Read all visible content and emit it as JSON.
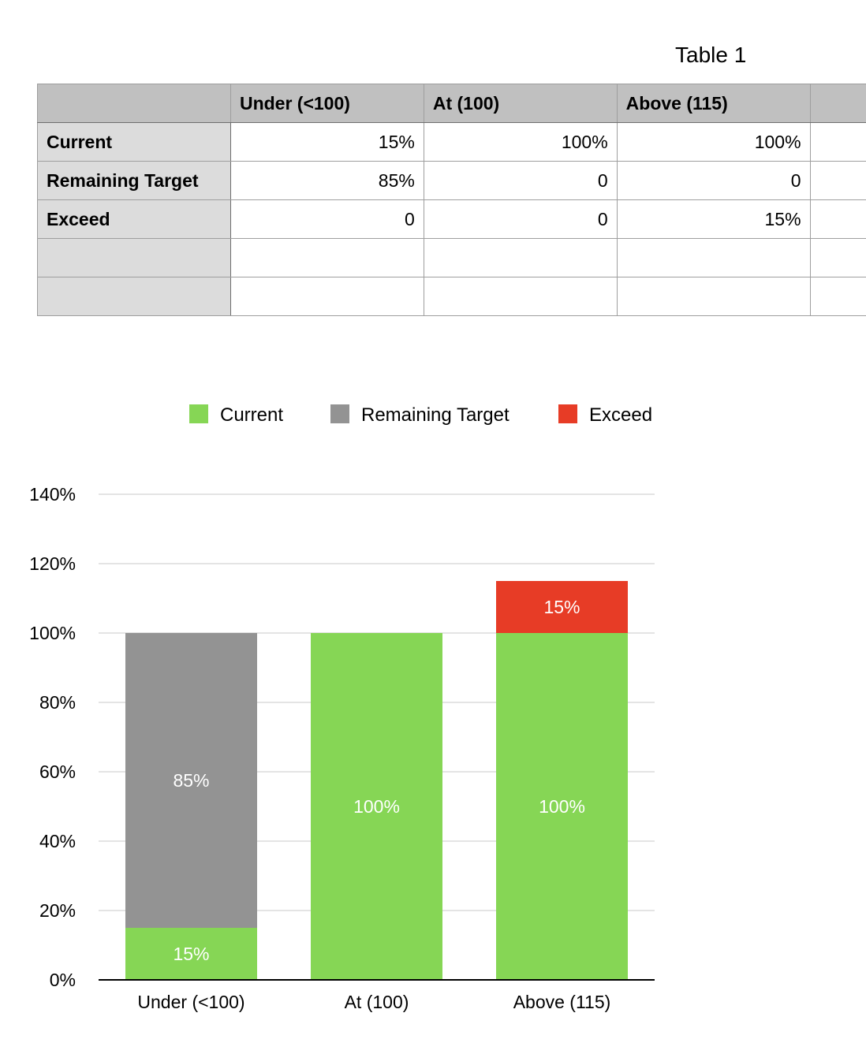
{
  "table": {
    "title": "Table 1",
    "columns": [
      "",
      "Under (<100)",
      "At (100)",
      "Above (115)",
      ""
    ],
    "rows": [
      {
        "label": "Current",
        "values": [
          "15%",
          "100%",
          "100%",
          ""
        ]
      },
      {
        "label": "Remaining Target",
        "values": [
          "85%",
          "0",
          "0",
          ""
        ]
      },
      {
        "label": "Exceed",
        "values": [
          "0",
          "0",
          "15%",
          ""
        ]
      },
      {
        "label": "",
        "values": [
          "",
          "",
          "",
          ""
        ]
      },
      {
        "label": "",
        "values": [
          "",
          "",
          "",
          ""
        ]
      }
    ]
  },
  "chart_data": {
    "type": "bar",
    "stacked": true,
    "categories": [
      "Under (<100)",
      "At (100)",
      "Above (115)"
    ],
    "series": [
      {
        "name": "Current",
        "color": "#86d655",
        "values": [
          15,
          100,
          100
        ],
        "labels": [
          "15%",
          "100%",
          "100%"
        ]
      },
      {
        "name": "Remaining Target",
        "color": "#939393",
        "values": [
          85,
          0,
          0
        ],
        "labels": [
          "85%",
          "",
          ""
        ]
      },
      {
        "name": "Exceed",
        "color": "#e73c26",
        "values": [
          0,
          0,
          15
        ],
        "labels": [
          "",
          "",
          "15%"
        ]
      }
    ],
    "ylim": [
      0,
      140
    ],
    "yticks": [
      0,
      20,
      40,
      60,
      80,
      100,
      120,
      140
    ],
    "ytick_labels": [
      "0%",
      "20%",
      "40%",
      "60%",
      "80%",
      "100%",
      "120%",
      "140%"
    ],
    "grid": true,
    "legend": "top",
    "title": "",
    "xlabel": "",
    "ylabel": ""
  }
}
